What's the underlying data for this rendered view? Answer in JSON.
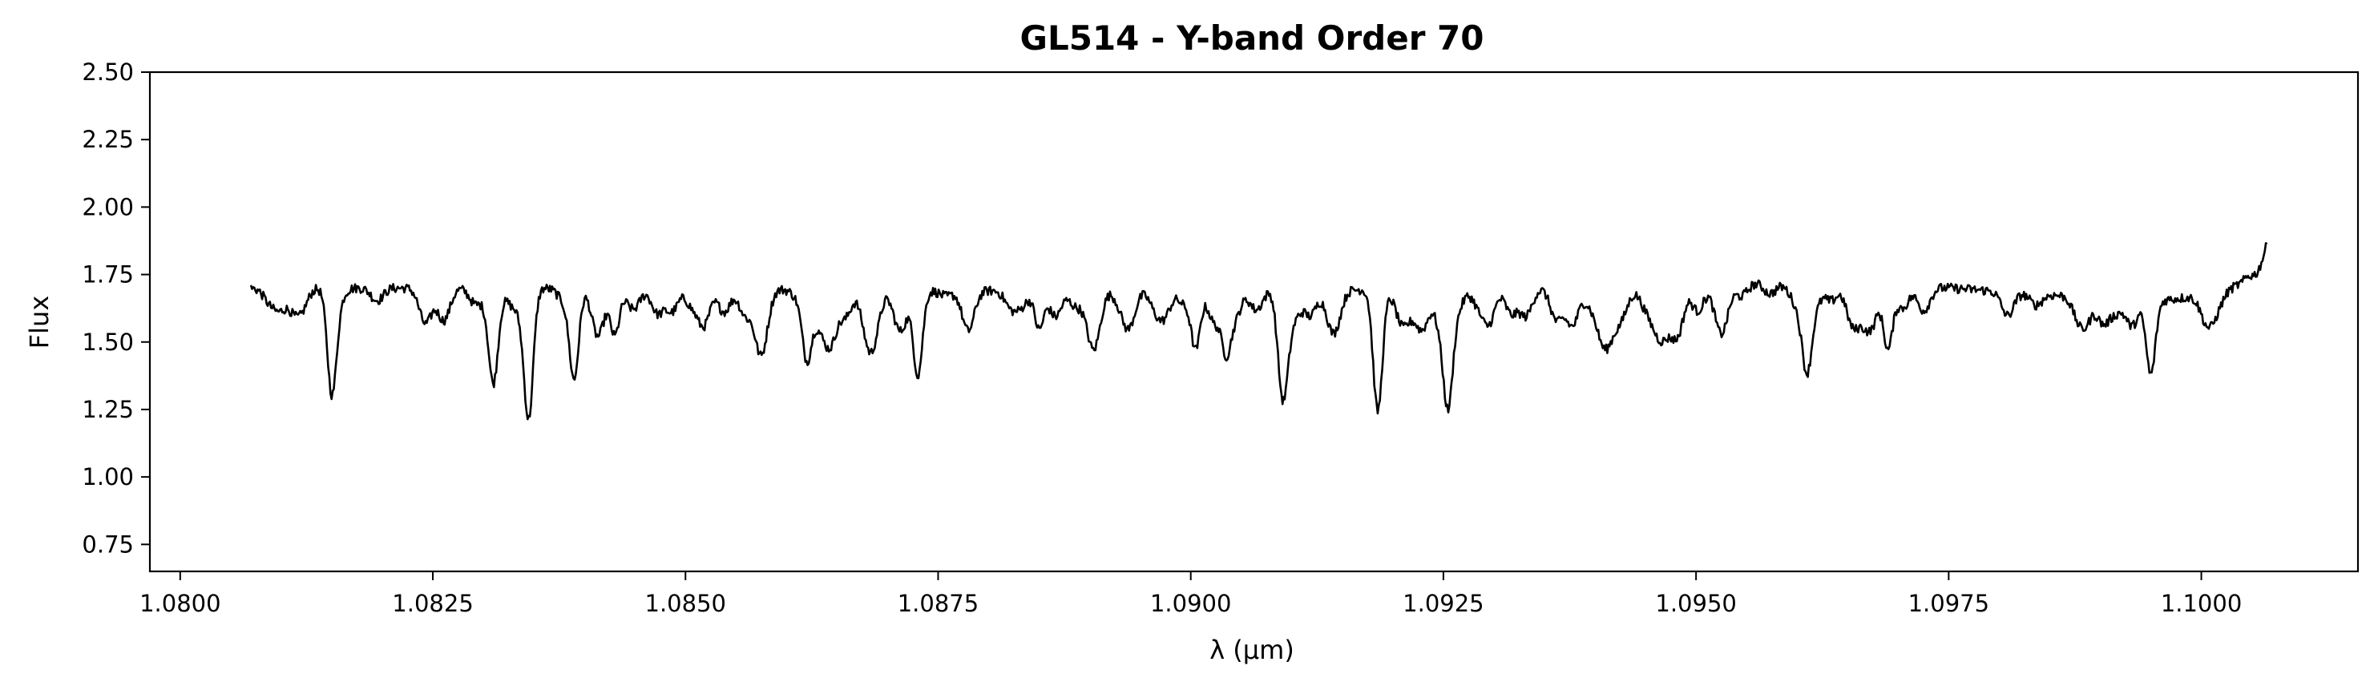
{
  "chart_data": {
    "type": "line",
    "title": "GL514 - Y-band Order 70",
    "xlabel": "λ (μm)",
    "ylabel": "Flux",
    "xlim": [
      1.0797,
      1.10155
    ],
    "ylim": [
      0.65,
      2.5
    ],
    "xticks": [
      1.08,
      1.0825,
      1.085,
      1.0875,
      1.09,
      1.0925,
      1.095,
      1.0975,
      1.1
    ],
    "xtick_labels": [
      "1.0800",
      "1.0825",
      "1.0850",
      "1.0875",
      "1.0900",
      "1.0925",
      "1.0950",
      "1.0975",
      "1.1000"
    ],
    "yticks": [
      0.75,
      1.0,
      1.25,
      1.5,
      1.75,
      2.0,
      2.25,
      2.5
    ],
    "ytick_labels": [
      "0.75",
      "1.00",
      "1.25",
      "1.50",
      "1.75",
      "2.00",
      "2.25",
      "2.50"
    ],
    "grid": false,
    "series": [
      {
        "color": "#000000",
        "x_range": [
          1.0807,
          1.10065
        ],
        "continuum": [
          [
            1.0807,
            1.7
          ],
          [
            1.0845,
            1.7
          ],
          [
            1.0875,
            1.69
          ],
          [
            1.0905,
            1.69
          ],
          [
            1.0935,
            1.7
          ],
          [
            1.0955,
            1.72
          ],
          [
            1.0975,
            1.7
          ],
          [
            1.0995,
            1.65
          ],
          [
            1.1002,
            1.68
          ],
          [
            1.1004,
            1.72
          ],
          [
            1.10065,
            1.88
          ]
        ],
        "absorption_lines": [
          {
            "x": 1.0815,
            "y": 1.34
          },
          {
            "x": 1.0831,
            "y": 1.43
          },
          {
            "x": 1.08345,
            "y": 1.29
          },
          {
            "x": 1.0839,
            "y": 1.4
          },
          {
            "x": 1.0843,
            "y": 1.53
          },
          {
            "x": 1.0862,
            "y": 1.47
          },
          {
            "x": 1.0873,
            "y": 1.38
          },
          {
            "x": 1.0885,
            "y": 1.55
          },
          {
            "x": 1.09005,
            "y": 1.48
          },
          {
            "x": 1.09035,
            "y": 1.5
          },
          {
            "x": 1.0909,
            "y": 1.38
          },
          {
            "x": 1.09095,
            "y": 1.55
          },
          {
            "x": 1.09185,
            "y": 1.27
          },
          {
            "x": 1.09255,
            "y": 1.37
          },
          {
            "x": 1.0961,
            "y": 1.5
          },
          {
            "x": 1.0969,
            "y": 1.48
          },
          {
            "x": 1.0995,
            "y": 1.38
          }
        ]
      }
    ]
  }
}
